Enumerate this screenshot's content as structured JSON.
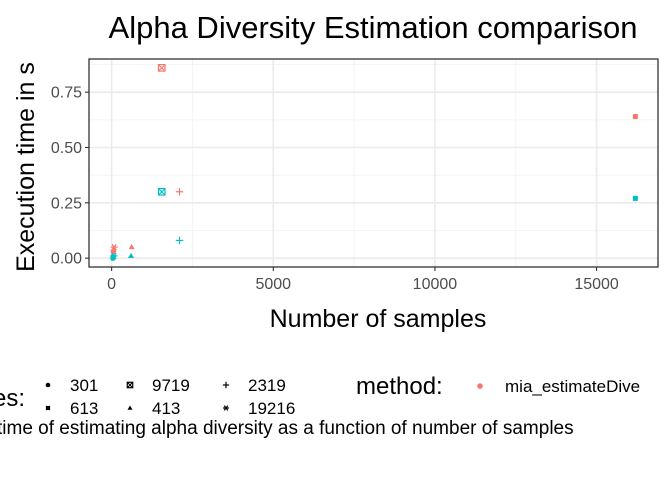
{
  "chart_data": {
    "type": "scatter",
    "title": "Alpha Diversity Estimation comparison",
    "xlabel": "Number of samples",
    "ylabel": "Execution time in s",
    "xlim": [
      -700,
      16900
    ],
    "ylim": [
      -0.04,
      0.9
    ],
    "x_ticks": [
      0,
      5000,
      10000,
      15000
    ],
    "x_tick_labels": [
      "0",
      "5000",
      "10000",
      "15000"
    ],
    "y_ticks": [
      0.0,
      0.25,
      0.5,
      0.75
    ],
    "y_tick_labels": [
      "0.00",
      "0.25",
      "0.50",
      "0.75"
    ],
    "grid": true,
    "caption": "time of estimating alpha diversity as a function of number of samples",
    "legend": {
      "features_title": "es:",
      "features": [
        {
          "label": "301",
          "shape": "circle"
        },
        {
          "label": "613",
          "shape": "square"
        },
        {
          "label": "9719",
          "shape": "boxed-x"
        },
        {
          "label": "413",
          "shape": "triangle"
        },
        {
          "label": "2319",
          "shape": "plus"
        },
        {
          "label": "19216",
          "shape": "asterisk"
        }
      ],
      "method_title": "method:",
      "methods": [
        {
          "label": "mia_estimateDive",
          "color": "#f8766d"
        }
      ]
    },
    "colors": {
      "series_a": "#f8766d",
      "series_b": "#00bfc4"
    },
    "series": [
      {
        "color": "#f8766d",
        "points": [
          {
            "x": 50,
            "y": 0.03,
            "shape": "circle"
          },
          {
            "x": 60,
            "y": 0.04,
            "shape": "triangle"
          },
          {
            "x": 80,
            "y": 0.05,
            "shape": "asterisk"
          },
          {
            "x": 620,
            "y": 0.05,
            "shape": "triangle"
          },
          {
            "x": 1550,
            "y": 0.86,
            "shape": "boxed-x"
          },
          {
            "x": 2100,
            "y": 0.3,
            "shape": "plus"
          },
          {
            "x": 16200,
            "y": 0.64,
            "shape": "square"
          }
        ]
      },
      {
        "color": "#00bfc4",
        "points": [
          {
            "x": 40,
            "y": 0.0,
            "shape": "circle"
          },
          {
            "x": 50,
            "y": 0.005,
            "shape": "square"
          },
          {
            "x": 70,
            "y": 0.01,
            "shape": "asterisk"
          },
          {
            "x": 600,
            "y": 0.01,
            "shape": "triangle"
          },
          {
            "x": 1550,
            "y": 0.3,
            "shape": "boxed-x"
          },
          {
            "x": 2100,
            "y": 0.08,
            "shape": "plus"
          },
          {
            "x": 16200,
            "y": 0.27,
            "shape": "square"
          }
        ]
      }
    ]
  }
}
